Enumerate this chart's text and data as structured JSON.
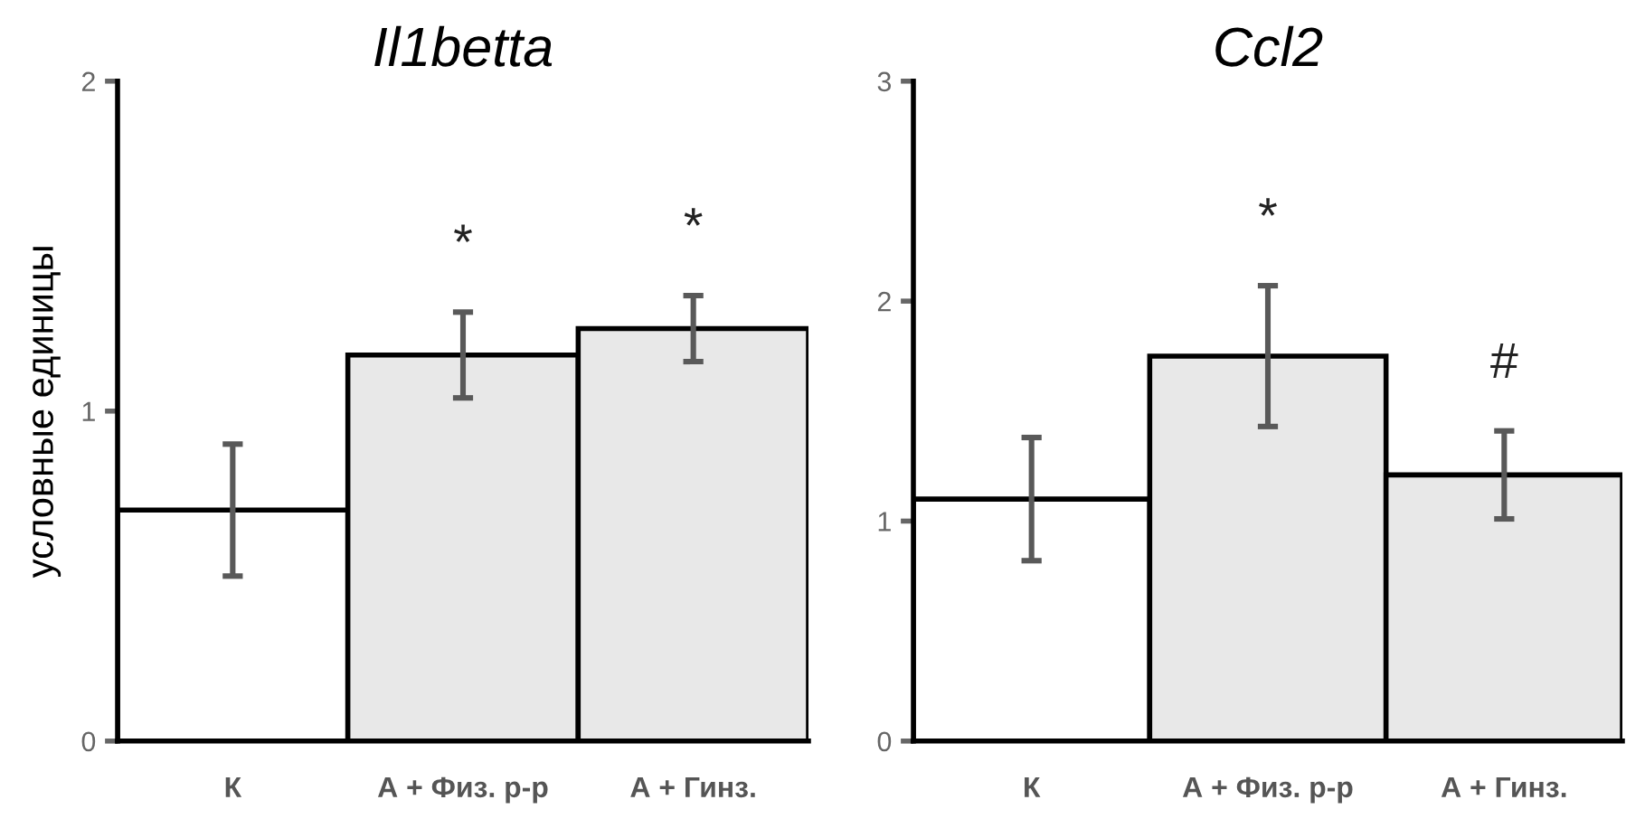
{
  "chart_data": [
    {
      "type": "bar",
      "title": "Il1betta",
      "ylabel": "условные единицы",
      "categories": [
        "К",
        "А + Физ. р-р",
        "А + Гинз."
      ],
      "values": [
        0.7,
        1.17,
        1.25
      ],
      "errors": [
        0.2,
        0.13,
        0.1
      ],
      "colors": [
        "#ffffff",
        "#e8e8e8",
        "#e8e8e8"
      ],
      "ylim": [
        0,
        2
      ],
      "yticks": [
        0,
        1,
        2
      ],
      "grid": false,
      "annotations": [
        "*",
        "*"
      ]
    },
    {
      "type": "bar",
      "title": "Ccl2",
      "categories": [
        "К",
        "А + Физ. р-р",
        "А + Гинз."
      ],
      "values": [
        1.1,
        1.75,
        1.21
      ],
      "errors": [
        0.28,
        0.32,
        0.2
      ],
      "colors": [
        "#ffffff",
        "#e8e8e8",
        "#e8e8e8"
      ],
      "ylim": [
        0,
        3
      ],
      "yticks": [
        0,
        1,
        2,
        3
      ],
      "grid": false,
      "annotations": [
        "*",
        "#"
      ]
    }
  ]
}
